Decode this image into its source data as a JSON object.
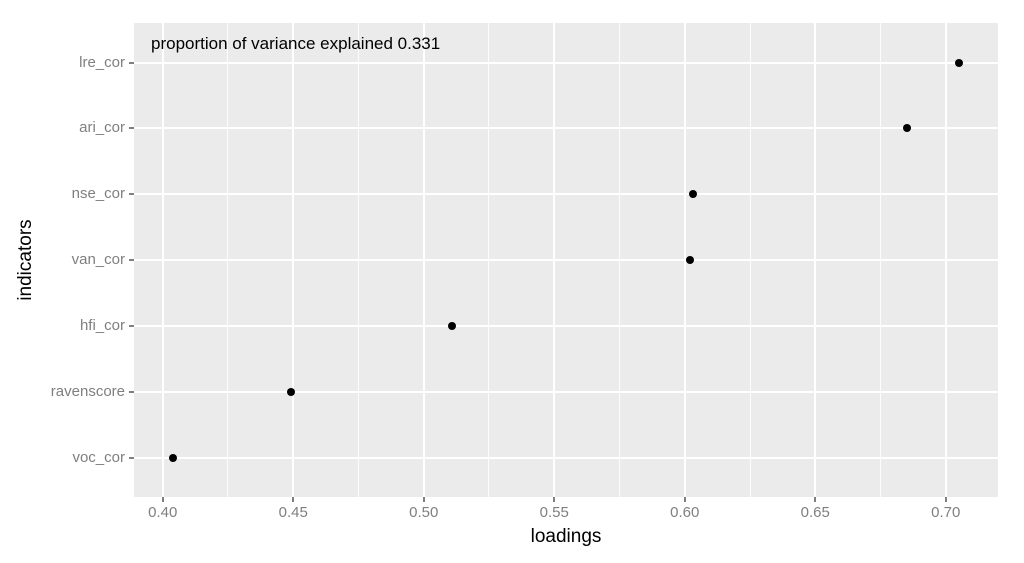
{
  "chart_data": {
    "type": "scatter",
    "title": "",
    "annotation": "proportion of variance explained 0.331",
    "xlabel": "loadings",
    "ylabel": "indicators",
    "categories": [
      "lre_cor",
      "ari_cor",
      "nse_cor",
      "van_cor",
      "hfi_cor",
      "ravenscore",
      "voc_cor"
    ],
    "values": [
      0.705,
      0.685,
      0.603,
      0.602,
      0.511,
      0.449,
      0.404
    ],
    "x_tick_values": [
      0.4,
      0.45,
      0.5,
      0.55,
      0.6,
      0.65,
      0.7
    ],
    "x_tick_labels": [
      "0.40",
      "0.45",
      "0.50",
      "0.55",
      "0.60",
      "0.65",
      "0.70"
    ],
    "x_minor_tick_values": [
      0.425,
      0.475,
      0.525,
      0.575,
      0.625,
      0.675
    ],
    "xlim": [
      0.389,
      0.72
    ],
    "grid": true,
    "legend": "none",
    "colors": {
      "panel_bg": "#EBEBEB",
      "grid_major": "#FFFFFF",
      "grid_minor": "#FFFFFF",
      "point": "#000000",
      "axis_text": "#7F7F7F",
      "axis_title": "#000000",
      "tick": "#7F7F7F"
    }
  }
}
